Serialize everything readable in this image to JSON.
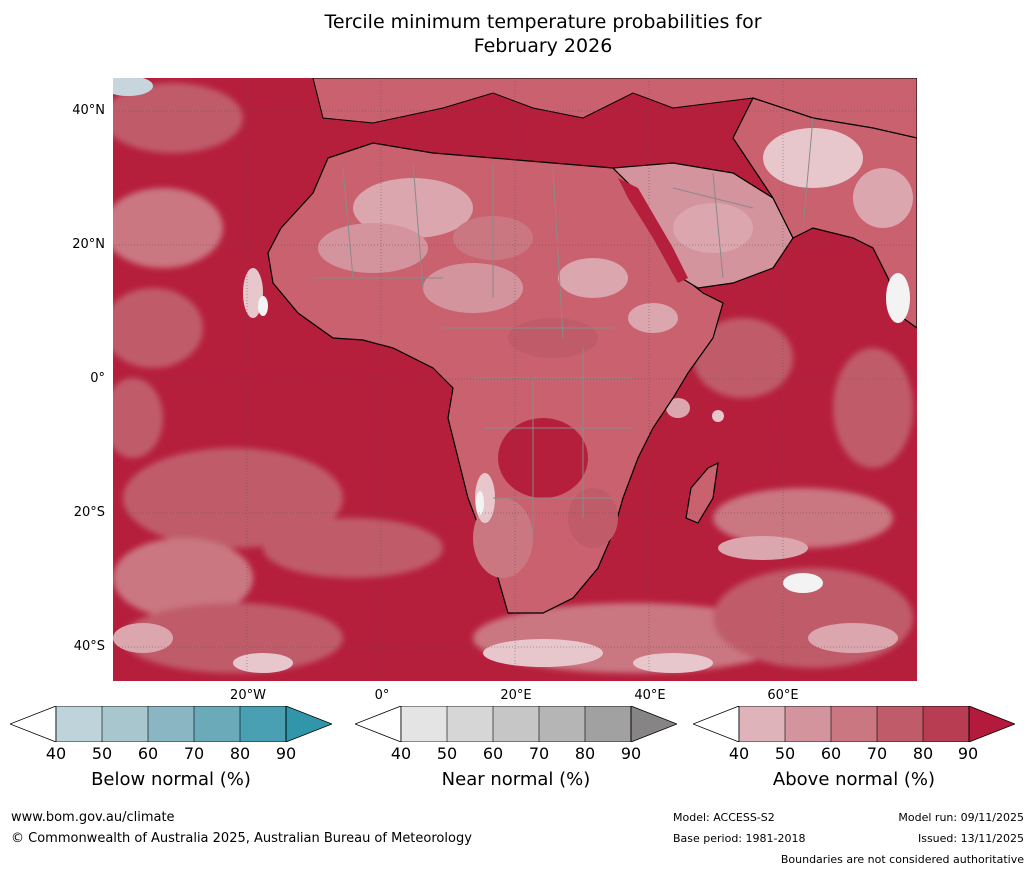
{
  "title": {
    "line1": "Tercile minimum temperature probabilities for",
    "line2": "February 2026"
  },
  "map": {
    "lat_labels": [
      "40°N",
      "20°N",
      "0°",
      "20°S",
      "40°S"
    ],
    "lon_labels": [
      "20°W",
      "0°",
      "20°E",
      "40°E",
      "60°E"
    ],
    "colors": {
      "ocean_base": "#b61f3c",
      "land_base": "#c9616f",
      "light": "#dba6ae",
      "lighter": "#e8c7cc",
      "white": "#f3f3f3",
      "grey_blue": "#c6d6dc",
      "coast": "#000000",
      "border": "#8a8a8a"
    }
  },
  "legends": [
    {
      "title": "Below normal (%)",
      "ticks": [
        "40",
        "50",
        "60",
        "70",
        "80",
        "90"
      ],
      "colors": [
        "#bfd3db",
        "#a7c6cd",
        "#89b6c2",
        "#6aaab9",
        "#48a0b2",
        "#3196aa"
      ]
    },
    {
      "title": "Near normal (%)",
      "ticks": [
        "40",
        "50",
        "60",
        "70",
        "80",
        "90"
      ],
      "colors": [
        "#e4e4e4",
        "#d6d6d6",
        "#c6c6c6",
        "#b5b5b5",
        "#a1a1a1",
        "#878486"
      ]
    },
    {
      "title": "Above normal (%)",
      "ticks": [
        "40",
        "50",
        "60",
        "70",
        "80",
        "90"
      ],
      "colors": [
        "#dfb3ba",
        "#d4949e",
        "#ca7782",
        "#c05c6a",
        "#b83d52",
        "#b31a3c"
      ]
    }
  ],
  "footer": {
    "website": "www.bom.gov.au/climate",
    "copyright": "© Commonwealth of Australia 2025, Australian Bureau of Meteorology",
    "model": "Model: ACCESS-S2",
    "base_period": "Base period: 1981-2018",
    "model_run": "Model run: 09/11/2025",
    "issued": "Issued: 13/11/2025",
    "disclaimer": "Boundaries are not considered authoritative"
  }
}
